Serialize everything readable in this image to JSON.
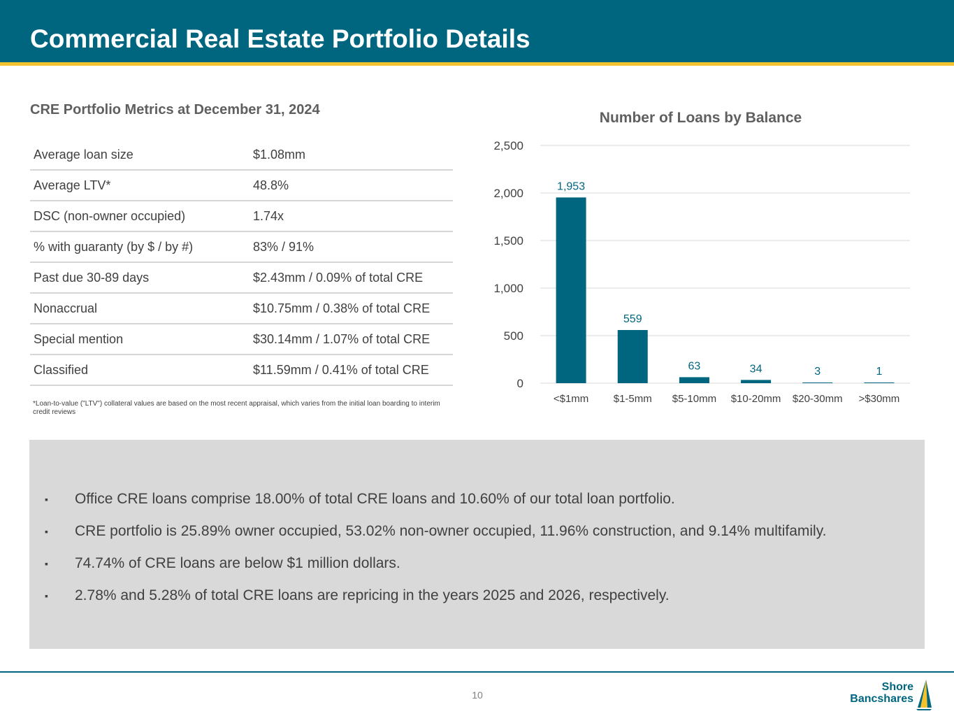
{
  "slide": {
    "title": "Commercial Real Estate Portfolio Details",
    "page_number": "10"
  },
  "metrics": {
    "title": "CRE Portfolio Metrics at December 31, 2024",
    "rows": [
      {
        "label": "Average loan size",
        "value": "$1.08mm"
      },
      {
        "label": "Average LTV*",
        "value": "48.8%"
      },
      {
        "label": "DSC (non-owner occupied)",
        "value": "1.74x"
      },
      {
        "label": "% with guaranty (by $ / by #)",
        "value": "83% / 91%"
      },
      {
        "label": "Past due 30-89 days",
        "value": "$2.43mm / 0.09% of total CRE"
      },
      {
        "label": "Nonaccrual",
        "value": "$10.75mm / 0.38% of total CRE"
      },
      {
        "label": "Special mention",
        "value": "$30.14mm / 1.07% of total CRE"
      },
      {
        "label": "Classified",
        "value": "$11.59mm / 0.41% of total CRE"
      }
    ],
    "footnote": "*Loan-to-value (\"LTV\") collateral values are based on the most recent appraisal, which varies from the initial loan boarding to interim credit reviews"
  },
  "chart_data": {
    "type": "bar",
    "title": "Number of Loans by Balance",
    "categories": [
      "<$1mm",
      "$1-5mm",
      "$5-10mm",
      "$10-20mm",
      "$20-30mm",
      ">$30mm"
    ],
    "values": [
      1953,
      559,
      63,
      34,
      3,
      1
    ],
    "data_labels": [
      "1,953",
      "559",
      "63",
      "34",
      "3",
      "1"
    ],
    "yticks": [
      "0",
      "500",
      "1,000",
      "1,500",
      "2,000",
      "2,500"
    ],
    "ylim": [
      0,
      2500
    ],
    "xlabel": "",
    "ylabel": "",
    "grid": true,
    "bar_color": "#006680"
  },
  "highlights": [
    {
      "marker": "▪",
      "text": "Office CRE loans comprise 18.00% of total CRE loans and 10.60% of our total loan portfolio."
    },
    {
      "marker": "▪",
      "text": "CRE portfolio is 25.89% owner occupied, 53.02% non-owner occupied, 11.96% construction, and 9.14% multifamily."
    },
    {
      "marker": "▪",
      "text": "74.74% of CRE loans are below $1 million dollars."
    },
    {
      "marker": "▪",
      "text": "2.78% and 5.28% of total CRE loans are repricing in the years 2025 and 2026, respectively."
    }
  ],
  "logo": {
    "line1": "Shore",
    "line2": "Bancshares"
  },
  "colors": {
    "brand": "#006680",
    "accent": "#f2c12e",
    "panel": "#d9d9d9"
  }
}
